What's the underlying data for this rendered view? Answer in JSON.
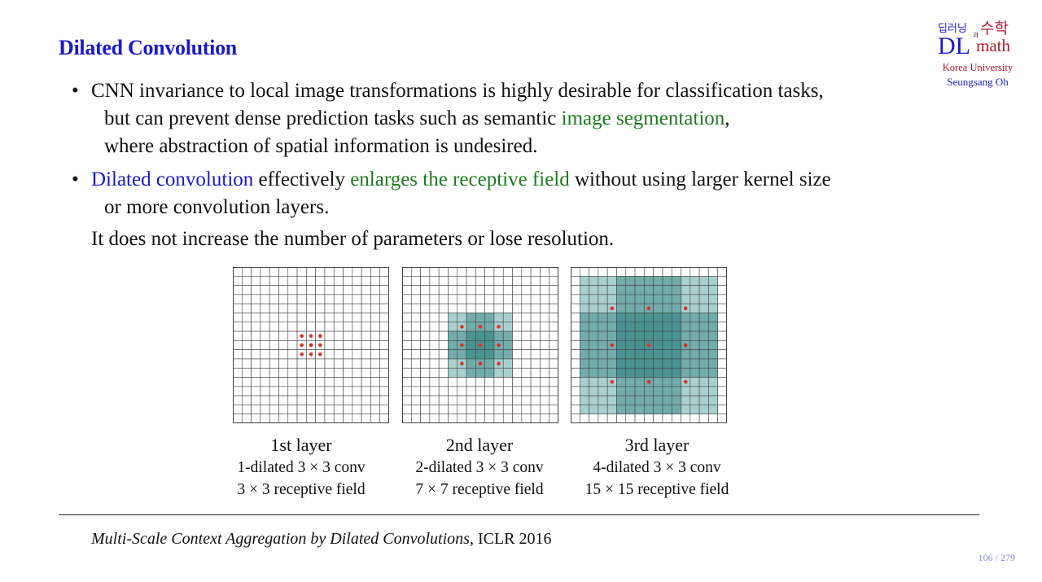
{
  "slide": {
    "title": "Dilated Convolution",
    "page_number": "106 / 279"
  },
  "logo": {
    "korean_left": "딥러닝",
    "korean_conj": "과",
    "korean_right": "수학",
    "dl": "DL",
    "math": "math",
    "university": "Korea University",
    "author": "Seungsang Oh"
  },
  "bullets": [
    {
      "marker": "•",
      "line1": "CNN invariance to local image transformations is highly desirable for classification tasks,",
      "line2_pre": "but can prevent dense prediction tasks such as semantic ",
      "line2_green": "image segmentation",
      "line2_post": ",",
      "line3": "where abstraction of spatial information is undesired."
    },
    {
      "marker": "•",
      "blue": "Dilated convolution",
      "mid": " effectively ",
      "green": "enlarges the receptive field",
      "post": " without using larger kernel size",
      "line2": "or more convolution layers."
    }
  ],
  "extra_line": "It does not increase the number of parameters or lose resolution.",
  "figure": {
    "colors": {
      "light": "#a9d0cf",
      "mid": "#72acab",
      "dark": "#4a9393",
      "dot": "#d9322b",
      "grid": "#444444"
    },
    "panels": [
      {
        "layer": "1st layer",
        "conv": "1-dilated 3 × 3 conv",
        "receptive": "3 × 3 receptive field",
        "dilation": 1
      },
      {
        "layer": "2nd layer",
        "conv": "2-dilated 3 × 3 conv",
        "receptive": "7 × 7 receptive field",
        "dilation": 2
      },
      {
        "layer": "3rd layer",
        "conv": "4-dilated 3 × 3 conv",
        "receptive": "15 × 15 receptive field",
        "dilation": 4
      }
    ]
  },
  "reference": {
    "title": "Multi-Scale Context Aggregation by Dilated Convolutions",
    "venue": "ICLR 2016"
  }
}
